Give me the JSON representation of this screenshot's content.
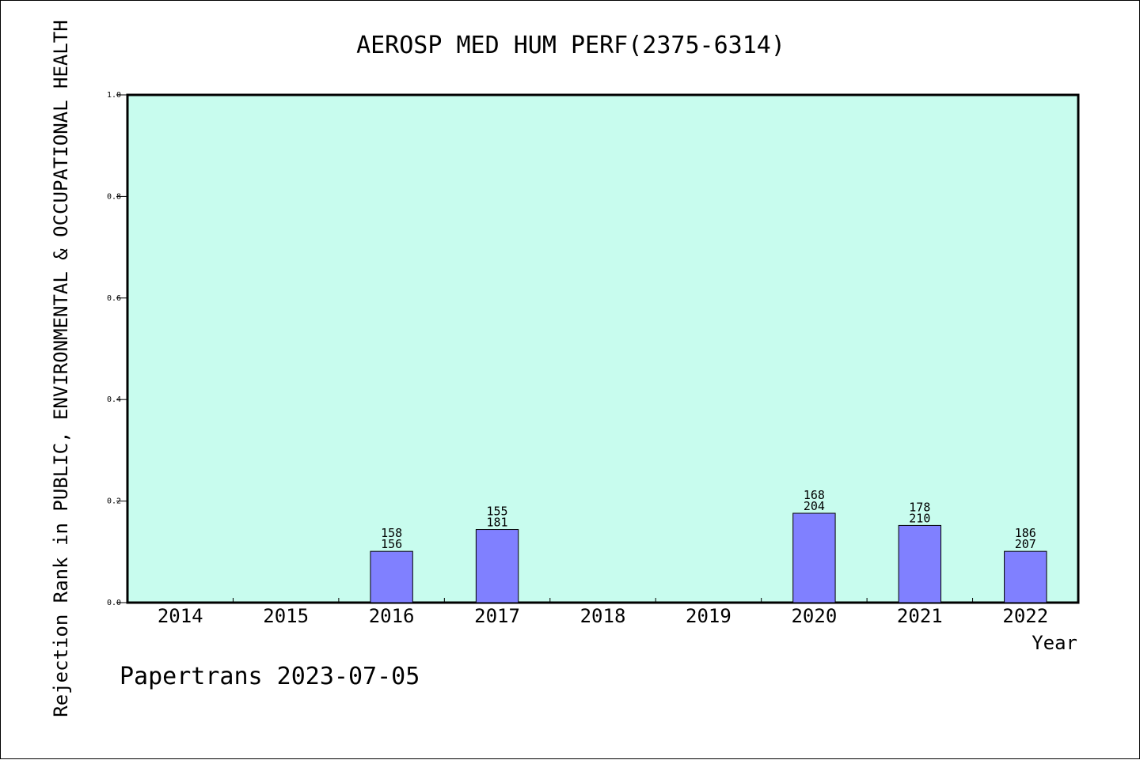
{
  "chart_data": {
    "type": "bar",
    "title": "AEROSP MED HUM PERF(2375-6314)",
    "ylabel": "Rejection Rank in PUBLIC, ENVIRONMENTAL & OCCUPATIONAL HEALTH",
    "xlabel": "Year",
    "ylim": [
      0,
      1
    ],
    "yticks": [
      "0.0",
      "0.2",
      "0.4",
      "0.6",
      "0.8",
      "1.0"
    ],
    "categories": [
      "2014",
      "2015",
      "2016",
      "2017",
      "2018",
      "2019",
      "2020",
      "2021",
      "2022"
    ],
    "values": [
      null,
      null,
      0.101,
      0.144,
      null,
      null,
      0.176,
      0.152,
      0.101
    ],
    "bar_labels_top": [
      null,
      null,
      "158",
      "155",
      null,
      null,
      "168",
      "178",
      "186"
    ],
    "bar_labels_bottom": [
      null,
      null,
      "156",
      "181",
      null,
      null,
      "204",
      "210",
      "207"
    ],
    "grid": false,
    "colors": {
      "plot_background": "#c8fcee",
      "bar": "#8080ff"
    }
  },
  "footer": "Papertrans 2023-07-05"
}
